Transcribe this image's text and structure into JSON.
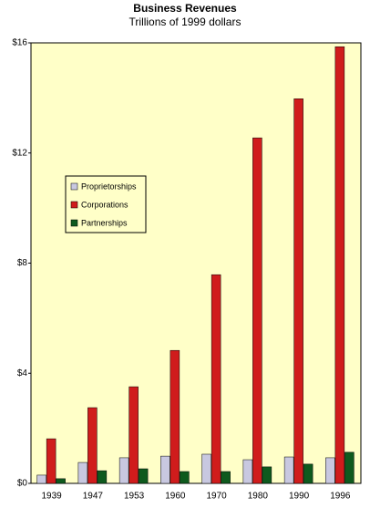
{
  "chart_data": {
    "type": "bar",
    "title": "Business Revenues",
    "subtitle": "Trillions of 1999 dollars",
    "categories": [
      "1939",
      "1947",
      "1953",
      "1960",
      "1970",
      "1980",
      "1990",
      "1996"
    ],
    "series": [
      {
        "name": "Proprietorships",
        "color": "#c8c8e0",
        "values": [
          0.3,
          0.76,
          0.93,
          0.99,
          1.06,
          0.86,
          0.96,
          0.93
        ]
      },
      {
        "name": "Corporations",
        "color": "#d01c1c",
        "values": [
          1.62,
          2.75,
          3.51,
          4.83,
          7.58,
          12.55,
          13.97,
          15.86
        ]
      },
      {
        "name": "Partnerships",
        "color": "#0e5a1e",
        "values": [
          0.17,
          0.46,
          0.53,
          0.43,
          0.43,
          0.6,
          0.7,
          1.13
        ]
      }
    ],
    "ylim": [
      0,
      16
    ],
    "yticks": [
      {
        "value": 0,
        "label": "$0"
      },
      {
        "value": 4,
        "label": "$4"
      },
      {
        "value": 8,
        "label": "$8"
      },
      {
        "value": 12,
        "label": "$12"
      },
      {
        "value": 16,
        "label": "$16"
      }
    ],
    "background": "#ffffc8"
  }
}
